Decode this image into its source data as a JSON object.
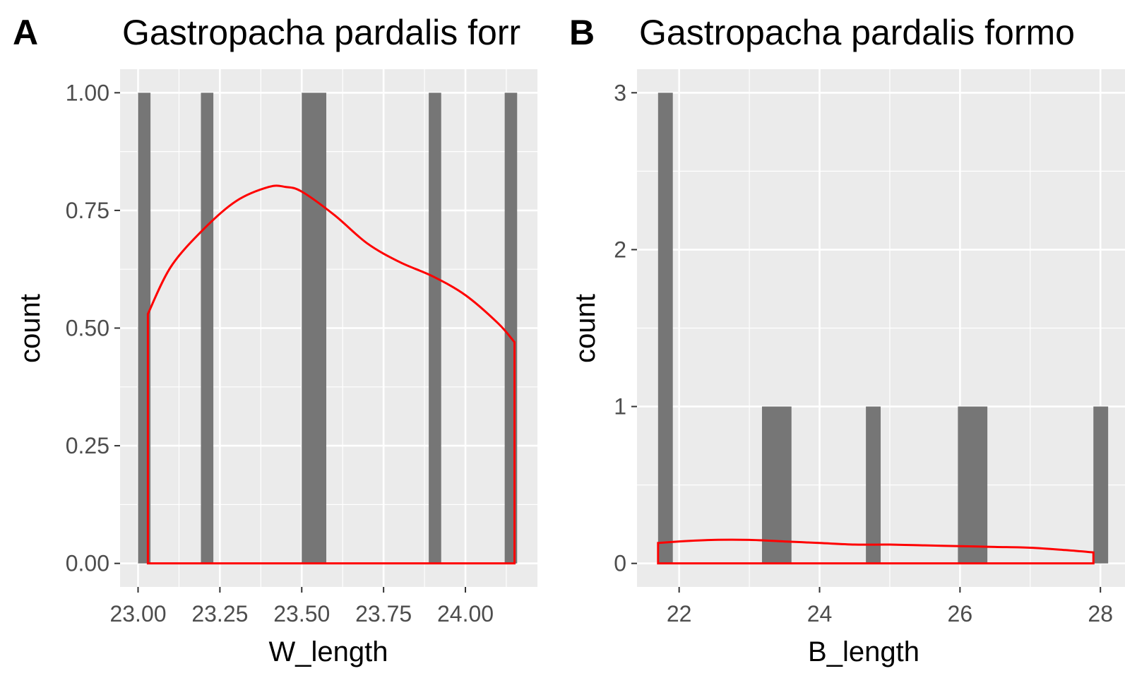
{
  "chart_data": [
    {
      "type": "bar",
      "tag": "A",
      "title": "Gastropacha pardalis forr",
      "xlabel": "W_length",
      "ylabel": "count",
      "xlim": [
        22.945,
        24.22
      ],
      "ylim": [
        -0.05,
        1.05
      ],
      "xticks": [
        "23.00",
        "23.25",
        "23.50",
        "23.75",
        "24.00"
      ],
      "xtick_values": [
        23.0,
        23.25,
        23.5,
        23.75,
        24.0
      ],
      "yticks": [
        "0.00",
        "0.25",
        "0.50",
        "0.75",
        "1.00"
      ],
      "ytick_values": [
        0,
        0.25,
        0.5,
        0.75,
        1.0
      ],
      "bars": [
        {
          "x0": 23.0,
          "x1": 23.038,
          "count": 1
        },
        {
          "x0": 23.192,
          "x1": 23.23,
          "count": 1
        },
        {
          "x0": 23.5,
          "x1": 23.575,
          "count": 1
        },
        {
          "x0": 23.888,
          "x1": 23.926,
          "count": 1
        },
        {
          "x0": 24.12,
          "x1": 24.158,
          "count": 1
        }
      ],
      "density_curve": {
        "color": "#ff0000",
        "x": [
          23.03,
          23.1,
          23.2,
          23.3,
          23.4,
          23.45,
          23.5,
          23.6,
          23.7,
          23.8,
          23.9,
          24.0,
          24.1,
          24.15
        ],
        "y": [
          0.53,
          0.63,
          0.71,
          0.77,
          0.8,
          0.8,
          0.79,
          0.74,
          0.68,
          0.64,
          0.61,
          0.57,
          0.51,
          0.47
        ]
      },
      "bar_color": "#767676",
      "panel_bg": "#ebebeb",
      "grid": true
    },
    {
      "type": "bar",
      "tag": "B",
      "title": "Gastropacha pardalis formo",
      "xlabel": "B_length",
      "ylabel": "count",
      "xlim": [
        21.4,
        28.35
      ],
      "ylim": [
        -0.15,
        3.15
      ],
      "xticks": [
        "22",
        "24",
        "26",
        "28"
      ],
      "xtick_values": [
        22,
        24,
        26,
        28
      ],
      "yticks": [
        "0",
        "1",
        "2",
        "3"
      ],
      "ytick_values": [
        0,
        1,
        2,
        3
      ],
      "bars": [
        {
          "x0": 21.7,
          "x1": 21.91,
          "count": 3
        },
        {
          "x0": 23.18,
          "x1": 23.6,
          "count": 1
        },
        {
          "x0": 24.66,
          "x1": 24.87,
          "count": 1
        },
        {
          "x0": 25.97,
          "x1": 26.39,
          "count": 1
        },
        {
          "x0": 27.9,
          "x1": 28.11,
          "count": 1
        }
      ],
      "density_curve": {
        "color": "#ff0000",
        "x": [
          21.7,
          22.0,
          22.5,
          23.0,
          23.5,
          24.0,
          24.5,
          25.0,
          25.5,
          26.0,
          26.5,
          27.0,
          27.5,
          27.9
        ],
        "y": [
          0.13,
          0.14,
          0.15,
          0.15,
          0.14,
          0.13,
          0.12,
          0.12,
          0.115,
          0.11,
          0.105,
          0.1,
          0.085,
          0.07
        ]
      },
      "bar_color": "#767676",
      "panel_bg": "#ebebeb",
      "grid": true
    }
  ]
}
